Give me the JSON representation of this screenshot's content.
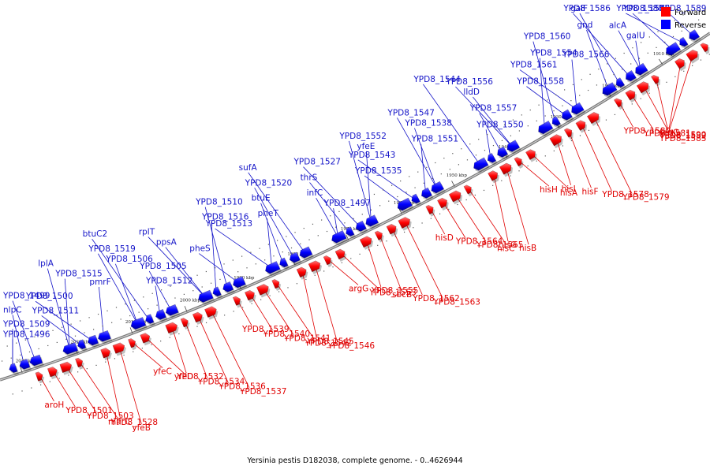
{
  "caption": "Yersinia pestis D182038, complete genome. - 0..4626944",
  "legend": {
    "forward": {
      "label": "Forward",
      "color": "#ff0000"
    },
    "reverse": {
      "label": "Reverse",
      "color": "#0000ff"
    }
  },
  "kbp_ticks": [
    "1910 kbp",
    "1920 kbp",
    "1930 kbp",
    "1940 kbp",
    "1950 kbp",
    "1960 kbp",
    "1970 kbp",
    "1980 kbp",
    "1990 kbp",
    "2000 kbp",
    "2010 kbp",
    "2020 kbp",
    "2030 kbp"
  ],
  "reverse_genes": [
    "YPD8_1496",
    "YPD8_1509",
    "nlpC",
    "YPD8_1499",
    "YPD8_1515",
    "lplA",
    "YPD8_1511",
    "YPD8_1500",
    "pmrF",
    "YPD8_1506",
    "YPD8_1519",
    "btuC2",
    "YPD8_1512",
    "YPD8_1505",
    "ppsA",
    "rplT",
    "YPD8_1516",
    "YPD8_1510",
    "pheS",
    "YPD8_1513",
    "pheT",
    "btuE",
    "YPD8_1520",
    "sufA",
    "YPD8_1497",
    "infC",
    "thrS",
    "YPD8_1527",
    "yfeE",
    "YPD8_1552",
    "YPD8_1535",
    "YPD8_1543",
    "YPD8_1551",
    "YPD8_1538",
    "YPD8_1547",
    "YPD8_1544",
    "YPD8_1550",
    "YPD8_1557",
    "lldD",
    "YPD8_1556",
    "YPD8_1554",
    "YPD8_1560",
    "YPD8_1558",
    "YPD8_1561",
    "YPD8_1566",
    "gnd",
    "galF",
    "YPD8_1586",
    "galU",
    "alcA",
    "YPD8_1585",
    "YPD8_1588",
    "YPD8_1589"
  ],
  "forward_genes": [
    "aroH",
    "YPD8_1501",
    "YPD8_1503",
    "marC",
    "YPD8_1528",
    "yfeB",
    "yfeC",
    "yfeD",
    "YPD8_1532",
    "YPD8_1534",
    "YPD8_1536",
    "YPD8_1537",
    "YPD8_1539",
    "YPD8_1540",
    "YPD8_1541",
    "YPD8_1542",
    "YPD8_1545",
    "YPD8_1546",
    "argG",
    "YPD8_1553",
    "YPD8_1555",
    "sbcB",
    "YPD8_1562",
    "YPD8_1563",
    "hisD",
    "YPD8_1564",
    "YPD8_1565",
    "hisC",
    "hisG",
    "hisB",
    "hisH",
    "hisA",
    "hisI",
    "hisF",
    "YPD8_1578",
    "YPD8_1579",
    "YPD8_1580",
    "YPD8_1581",
    "YPD8_1582",
    "YPD8_1583",
    "fepC",
    "YPD8_1590"
  ]
}
